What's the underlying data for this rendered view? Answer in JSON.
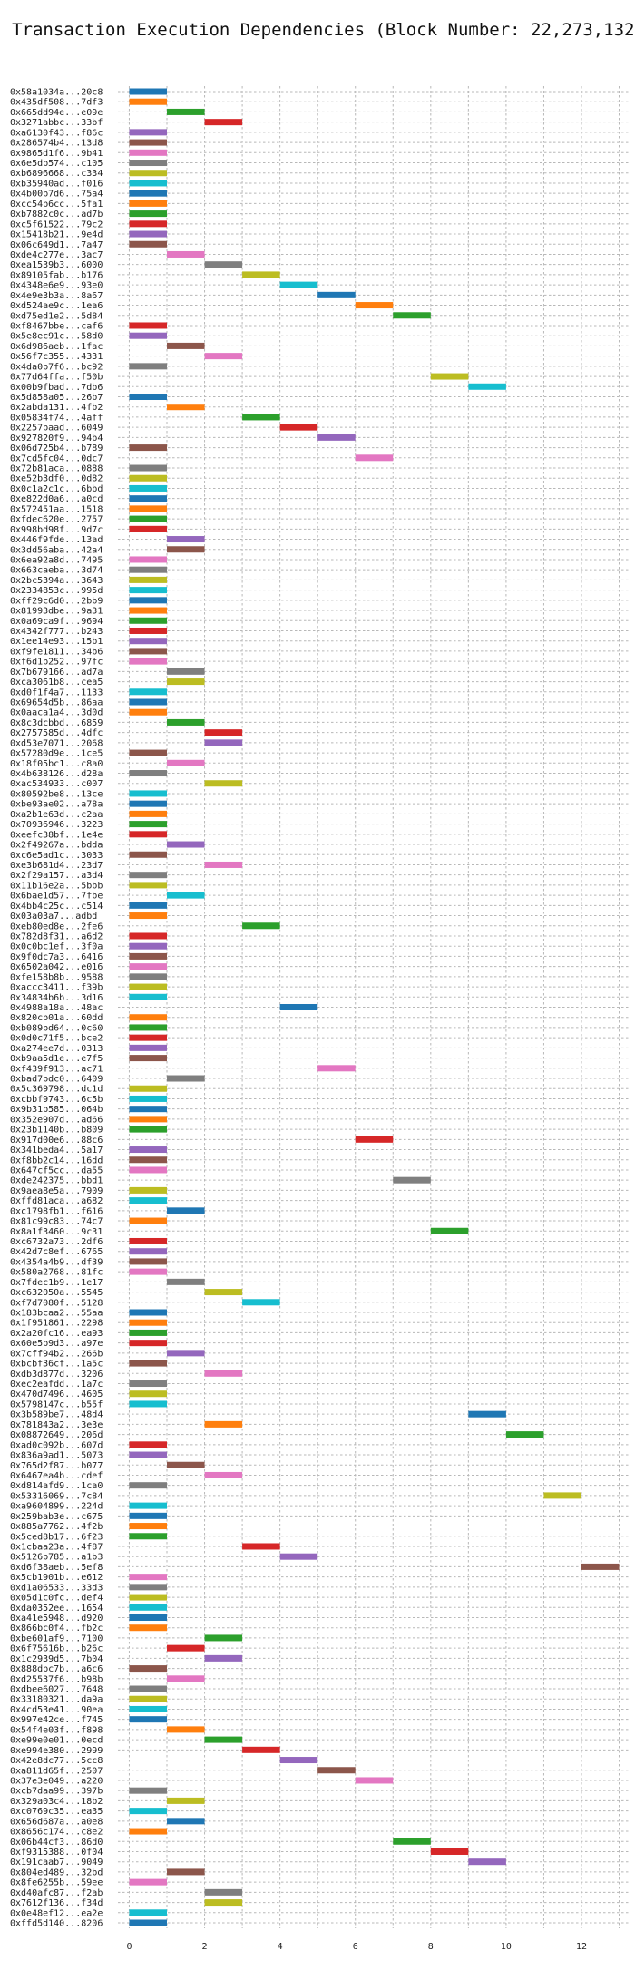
{
  "chart_data": {
    "type": "bar",
    "orientation": "horizontal",
    "title": "Transaction Execution Dependencies (Block Number: 22,273,132)",
    "xlabel": "",
    "ylabel": "",
    "xlim": [
      -0.3,
      13.3
    ],
    "xticks": [
      0,
      2,
      4,
      6,
      8,
      10,
      12
    ],
    "grid": "dotted vertical and horizontal",
    "legend": "none",
    "palette": [
      "#1f77b4",
      "#ff7f0e",
      "#2ca02c",
      "#d62728",
      "#9467bd",
      "#8c564b",
      "#e377c2",
      "#7f7f7f",
      "#bcbd22",
      "#17becf"
    ],
    "transactions": [
      {
        "hash": "0x58a1034a...20c8",
        "start": 0,
        "color": 0
      },
      {
        "hash": "0x435df508...7df3",
        "start": 0,
        "color": 1
      },
      {
        "hash": "0x665dd94e...e09e",
        "start": 1,
        "color": 2
      },
      {
        "hash": "0x3271abbc...33bf",
        "start": 2,
        "color": 3
      },
      {
        "hash": "0xa6130f43...f86c",
        "start": 0,
        "color": 4
      },
      {
        "hash": "0x286574b4...13d8",
        "start": 0,
        "color": 5
      },
      {
        "hash": "0x9865d1f6...9b41",
        "start": 0,
        "color": 6
      },
      {
        "hash": "0x6e5db574...c105",
        "start": 0,
        "color": 7
      },
      {
        "hash": "0xb6896668...c334",
        "start": 0,
        "color": 8
      },
      {
        "hash": "0xb35940ad...f016",
        "start": 0,
        "color": 9
      },
      {
        "hash": "0x4b00b7d6...75a4",
        "start": 0,
        "color": 0
      },
      {
        "hash": "0xcc54b6cc...5fa1",
        "start": 0,
        "color": 1
      },
      {
        "hash": "0xb7882c0c...ad7b",
        "start": 0,
        "color": 2
      },
      {
        "hash": "0xc5f61522...79c2",
        "start": 0,
        "color": 3
      },
      {
        "hash": "0x15418b21...9e4d",
        "start": 0,
        "color": 4
      },
      {
        "hash": "0x06c649d1...7a47",
        "start": 0,
        "color": 5
      },
      {
        "hash": "0xde4c277e...3ac7",
        "start": 1,
        "color": 6
      },
      {
        "hash": "0xea1539b3...6000",
        "start": 2,
        "color": 7
      },
      {
        "hash": "0x89105fab...b176",
        "start": 3,
        "color": 8
      },
      {
        "hash": "0x4348e6e9...93e0",
        "start": 4,
        "color": 9
      },
      {
        "hash": "0x4e9e3b3a...8a67",
        "start": 5,
        "color": 0
      },
      {
        "hash": "0xd524ae9c...1ea6",
        "start": 6,
        "color": 1
      },
      {
        "hash": "0xd75ed1e2...5d84",
        "start": 7,
        "color": 2
      },
      {
        "hash": "0xf8467bbe...caf6",
        "start": 0,
        "color": 3
      },
      {
        "hash": "0x5e8ec91c...58d0",
        "start": 0,
        "color": 4
      },
      {
        "hash": "0x6d986aeb...1fac",
        "start": 1,
        "color": 5
      },
      {
        "hash": "0x56f7c355...4331",
        "start": 2,
        "color": 6
      },
      {
        "hash": "0x4da0b7f6...bc92",
        "start": 0,
        "color": 7
      },
      {
        "hash": "0x77d64ffa...f50b",
        "start": 8,
        "color": 8
      },
      {
        "hash": "0x00b9fbad...7db6",
        "start": 9,
        "color": 9
      },
      {
        "hash": "0x5d858a05...26b7",
        "start": 0,
        "color": 0
      },
      {
        "hash": "0x2abda131...4fb2",
        "start": 1,
        "color": 1
      },
      {
        "hash": "0x05834f74...4aff",
        "start": 3,
        "color": 2
      },
      {
        "hash": "0x2257baad...6049",
        "start": 4,
        "color": 3
      },
      {
        "hash": "0x927820f9...94b4",
        "start": 5,
        "color": 4
      },
      {
        "hash": "0x06d725b4...b789",
        "start": 0,
        "color": 5
      },
      {
        "hash": "0x7cd5fc04...0dc7",
        "start": 6,
        "color": 6
      },
      {
        "hash": "0x72b81aca...0888",
        "start": 0,
        "color": 7
      },
      {
        "hash": "0xe52b3df0...0d82",
        "start": 0,
        "color": 8
      },
      {
        "hash": "0x0c1a2c1c...6bbd",
        "start": 0,
        "color": 9
      },
      {
        "hash": "0xe822d0a6...a0cd",
        "start": 0,
        "color": 0
      },
      {
        "hash": "0x572451aa...1518",
        "start": 0,
        "color": 1
      },
      {
        "hash": "0xfdec620e...2757",
        "start": 0,
        "color": 2
      },
      {
        "hash": "0x998bd98f...9d7c",
        "start": 0,
        "color": 3
      },
      {
        "hash": "0x446f9fde...13ad",
        "start": 1,
        "color": 4
      },
      {
        "hash": "0x3dd56aba...42a4",
        "start": 1,
        "color": 5
      },
      {
        "hash": "0x6ea92a8d...7495",
        "start": 0,
        "color": 6
      },
      {
        "hash": "0x663caeba...3d74",
        "start": 0,
        "color": 7
      },
      {
        "hash": "0x2bc5394a...3643",
        "start": 0,
        "color": 8
      },
      {
        "hash": "0x2334853c...995d",
        "start": 0,
        "color": 9
      },
      {
        "hash": "0xff29c6d0...2bb9",
        "start": 0,
        "color": 0
      },
      {
        "hash": "0x81993dbe...9a31",
        "start": 0,
        "color": 1
      },
      {
        "hash": "0x0a69ca9f...9694",
        "start": 0,
        "color": 2
      },
      {
        "hash": "0x4342f777...b243",
        "start": 0,
        "color": 3
      },
      {
        "hash": "0x1ee14e93...15b1",
        "start": 0,
        "color": 4
      },
      {
        "hash": "0xf9fe1811...34b6",
        "start": 0,
        "color": 5
      },
      {
        "hash": "0xf6d1b252...97fc",
        "start": 0,
        "color": 6
      },
      {
        "hash": "0x7b679166...ad7a",
        "start": 1,
        "color": 7
      },
      {
        "hash": "0xca3061b8...cea5",
        "start": 1,
        "color": 8
      },
      {
        "hash": "0xd0f1f4a7...1133",
        "start": 0,
        "color": 9
      },
      {
        "hash": "0x69654d5b...86aa",
        "start": 0,
        "color": 0
      },
      {
        "hash": "0x0aaca1a4...3d0d",
        "start": 0,
        "color": 1
      },
      {
        "hash": "0x8c3dcbbd...6859",
        "start": 1,
        "color": 2
      },
      {
        "hash": "0x2757585d...4dfc",
        "start": 2,
        "color": 3
      },
      {
        "hash": "0xd53e7071...2068",
        "start": 2,
        "color": 4
      },
      {
        "hash": "0x57280d9e...1ce5",
        "start": 0,
        "color": 5
      },
      {
        "hash": "0x18f05bc1...c8a0",
        "start": 1,
        "color": 6
      },
      {
        "hash": "0x4b638126...d28a",
        "start": 0,
        "color": 7
      },
      {
        "hash": "0xac534933...c007",
        "start": 2,
        "color": 8
      },
      {
        "hash": "0x80592be8...13ce",
        "start": 0,
        "color": 9
      },
      {
        "hash": "0xbe93ae02...a78a",
        "start": 0,
        "color": 0
      },
      {
        "hash": "0xa2b1e63d...c2aa",
        "start": 0,
        "color": 1
      },
      {
        "hash": "0x70936946...3223",
        "start": 0,
        "color": 2
      },
      {
        "hash": "0xeefc38bf...1e4e",
        "start": 0,
        "color": 3
      },
      {
        "hash": "0x2f49267a...bdda",
        "start": 1,
        "color": 4
      },
      {
        "hash": "0xc6e5ad1c...3033",
        "start": 0,
        "color": 5
      },
      {
        "hash": "0xe3b681d4...23d7",
        "start": 2,
        "color": 6
      },
      {
        "hash": "0x2f29a157...a3d4",
        "start": 0,
        "color": 7
      },
      {
        "hash": "0x11b16e2a...5bbb",
        "start": 0,
        "color": 8
      },
      {
        "hash": "0x6bae1d57...7fbe",
        "start": 1,
        "color": 9
      },
      {
        "hash": "0x4bb4c25c...c514",
        "start": 0,
        "color": 0
      },
      {
        "hash": "0x03a03a7...adbd",
        "start": 0,
        "color": 1
      },
      {
        "hash": "0xeb80ed8e...2fe6",
        "start": 3,
        "color": 2
      },
      {
        "hash": "0x782d8f31...a6d2",
        "start": 0,
        "color": 3
      },
      {
        "hash": "0x0c0bc1ef...3f0a",
        "start": 0,
        "color": 4
      },
      {
        "hash": "0x9f0dc7a3...6416",
        "start": 0,
        "color": 5
      },
      {
        "hash": "0x6502a042...e016",
        "start": 0,
        "color": 6
      },
      {
        "hash": "0xfe158b8b...9588",
        "start": 0,
        "color": 7
      },
      {
        "hash": "0xaccc3411...f39b",
        "start": 0,
        "color": 8
      },
      {
        "hash": "0x34834b6b...3d16",
        "start": 0,
        "color": 9
      },
      {
        "hash": "0x4988a18a...48ac",
        "start": 4,
        "color": 0
      },
      {
        "hash": "0x820cb01a...60dd",
        "start": 0,
        "color": 1
      },
      {
        "hash": "0xb089bd64...0c60",
        "start": 0,
        "color": 2
      },
      {
        "hash": "0x0d0c71f5...bce2",
        "start": 0,
        "color": 3
      },
      {
        "hash": "0xa274ee7d...0313",
        "start": 0,
        "color": 4
      },
      {
        "hash": "0xb9aa5d1e...e7f5",
        "start": 0,
        "color": 5
      },
      {
        "hash": "0xf439f913...ac71",
        "start": 5,
        "color": 6
      },
      {
        "hash": "0xbad7bdc0...6409",
        "start": 1,
        "color": 7
      },
      {
        "hash": "0x5c369798...dc1d",
        "start": 0,
        "color": 8
      },
      {
        "hash": "0xcbbf9743...6c5b",
        "start": 0,
        "color": 9
      },
      {
        "hash": "0x9b31b585...064b",
        "start": 0,
        "color": 0
      },
      {
        "hash": "0x352e907d...ad66",
        "start": 0,
        "color": 1
      },
      {
        "hash": "0x23b1140b...b809",
        "start": 0,
        "color": 2
      },
      {
        "hash": "0x917d00e6...88c6",
        "start": 6,
        "color": 3
      },
      {
        "hash": "0x341beda4...5a17",
        "start": 0,
        "color": 4
      },
      {
        "hash": "0xf8bb2c14...16dd",
        "start": 0,
        "color": 5
      },
      {
        "hash": "0x647cf5cc...da55",
        "start": 0,
        "color": 6
      },
      {
        "hash": "0xde242375...bbd1",
        "start": 7,
        "color": 7
      },
      {
        "hash": "0x9aea8e5a...7909",
        "start": 0,
        "color": 8
      },
      {
        "hash": "0xffd81aca...a682",
        "start": 0,
        "color": 9
      },
      {
        "hash": "0xc1798fb1...f616",
        "start": 1,
        "color": 0
      },
      {
        "hash": "0x81c99c83...74c7",
        "start": 0,
        "color": 1
      },
      {
        "hash": "0x8a1f3460...9c31",
        "start": 8,
        "color": 2
      },
      {
        "hash": "0xc6732a73...2df6",
        "start": 0,
        "color": 3
      },
      {
        "hash": "0x42d7c8ef...6765",
        "start": 0,
        "color": 4
      },
      {
        "hash": "0x4354a4b9...df39",
        "start": 0,
        "color": 5
      },
      {
        "hash": "0x580a2768...81fc",
        "start": 0,
        "color": 6
      },
      {
        "hash": "0x7fdec1b9...1e17",
        "start": 1,
        "color": 7
      },
      {
        "hash": "0xc632050a...5545",
        "start": 2,
        "color": 8
      },
      {
        "hash": "0xf7d7080f...5128",
        "start": 3,
        "color": 9
      },
      {
        "hash": "0x183bcaa2...55aa",
        "start": 0,
        "color": 0
      },
      {
        "hash": "0x1f951861...2298",
        "start": 0,
        "color": 1
      },
      {
        "hash": "0x2a20fc16...ea93",
        "start": 0,
        "color": 2
      },
      {
        "hash": "0x60e5b9d3...a97e",
        "start": 0,
        "color": 3
      },
      {
        "hash": "0x7cff94b2...266b",
        "start": 1,
        "color": 4
      },
      {
        "hash": "0xbcbf36cf...1a5c",
        "start": 0,
        "color": 5
      },
      {
        "hash": "0xdb3d877d...3206",
        "start": 2,
        "color": 6
      },
      {
        "hash": "0xec2eafdd...1a7c",
        "start": 0,
        "color": 7
      },
      {
        "hash": "0x470d7496...4605",
        "start": 0,
        "color": 8
      },
      {
        "hash": "0x5798147c...b55f",
        "start": 0,
        "color": 9
      },
      {
        "hash": "0x3b589be7...48d4",
        "start": 9,
        "color": 0
      },
      {
        "hash": "0x781843a2...3e3e",
        "start": 2,
        "color": 1
      },
      {
        "hash": "0x08872649...206d",
        "start": 10,
        "color": 2
      },
      {
        "hash": "0xad0c092b...607d",
        "start": 0,
        "color": 3
      },
      {
        "hash": "0x836a9ad1...5073",
        "start": 0,
        "color": 4
      },
      {
        "hash": "0x765d2f87...b077",
        "start": 1,
        "color": 5
      },
      {
        "hash": "0x6467ea4b...cdef",
        "start": 2,
        "color": 6
      },
      {
        "hash": "0xd814afd9...1ca0",
        "start": 0,
        "color": 7
      },
      {
        "hash": "0x53316069...7c84",
        "start": 11,
        "color": 8
      },
      {
        "hash": "0xa9604899...224d",
        "start": 0,
        "color": 9
      },
      {
        "hash": "0x259bab3e...c675",
        "start": 0,
        "color": 0
      },
      {
        "hash": "0x885a7762...4f2b",
        "start": 0,
        "color": 1
      },
      {
        "hash": "0x5ced8b17...6f23",
        "start": 0,
        "color": 2
      },
      {
        "hash": "0x1cbaa23a...4f87",
        "start": 3,
        "color": 3
      },
      {
        "hash": "0x5126b785...a1b3",
        "start": 4,
        "color": 4
      },
      {
        "hash": "0xd6f38aeb...5ef8",
        "start": 12,
        "color": 5
      },
      {
        "hash": "0x5cb1901b...e612",
        "start": 0,
        "color": 6
      },
      {
        "hash": "0xd1a06533...33d3",
        "start": 0,
        "color": 7
      },
      {
        "hash": "0x05d1c0fc...def4",
        "start": 0,
        "color": 8
      },
      {
        "hash": "0xda0352ee...1654",
        "start": 0,
        "color": 9
      },
      {
        "hash": "0xa41e5948...d920",
        "start": 0,
        "color": 0
      },
      {
        "hash": "0x866bc0f4...fb2c",
        "start": 0,
        "color": 1
      },
      {
        "hash": "0xbe601af9...7100",
        "start": 2,
        "color": 2
      },
      {
        "hash": "0x6f75616b...b26c",
        "start": 1,
        "color": 3
      },
      {
        "hash": "0x1c2939d5...7b04",
        "start": 2,
        "color": 4
      },
      {
        "hash": "0x888dbc7b...a6c6",
        "start": 0,
        "color": 5
      },
      {
        "hash": "0xd25537f6...b98b",
        "start": 1,
        "color": 6
      },
      {
        "hash": "0xdbee6027...7648",
        "start": 0,
        "color": 7
      },
      {
        "hash": "0x33180321...da9a",
        "start": 0,
        "color": 8
      },
      {
        "hash": "0x4cd53e41...90ea",
        "start": 0,
        "color": 9
      },
      {
        "hash": "0x997e42ce...f745",
        "start": 0,
        "color": 0
      },
      {
        "hash": "0x54f4e03f...f898",
        "start": 1,
        "color": 1
      },
      {
        "hash": "0xe99e0e01...0ecd",
        "start": 2,
        "color": 2
      },
      {
        "hash": "0xe994e380...2999",
        "start": 3,
        "color": 3
      },
      {
        "hash": "0x42e8dc77...5cc8",
        "start": 4,
        "color": 4
      },
      {
        "hash": "0xa811d65f...2507",
        "start": 5,
        "color": 5
      },
      {
        "hash": "0x37e3e049...a220",
        "start": 6,
        "color": 6
      },
      {
        "hash": "0xcb7daa99...397b",
        "start": 0,
        "color": 7
      },
      {
        "hash": "0x329a03c4...18b2",
        "start": 1,
        "color": 8
      },
      {
        "hash": "0xc0769c35...ea35",
        "start": 0,
        "color": 9
      },
      {
        "hash": "0x656d687a...a0e8",
        "start": 1,
        "color": 0
      },
      {
        "hash": "0x8656c174...c8e2",
        "start": 0,
        "color": 1
      },
      {
        "hash": "0x06b44cf3...86d0",
        "start": 7,
        "color": 2
      },
      {
        "hash": "0xf9315388...0f04",
        "start": 8,
        "color": 3
      },
      {
        "hash": "0x191caab7...9049",
        "start": 9,
        "color": 4
      },
      {
        "hash": "0x804ed489...32bd",
        "start": 1,
        "color": 5
      },
      {
        "hash": "0x8fe6255b...59ee",
        "start": 0,
        "color": 6
      },
      {
        "hash": "0xd40afc87...f2ab",
        "start": 2,
        "color": 7
      },
      {
        "hash": "0x7612f136...f34d",
        "start": 2,
        "color": 8
      },
      {
        "hash": "0x0e48ef12...ea2e",
        "start": 0,
        "color": 9
      },
      {
        "hash": "0xffd5d140...8206",
        "start": 0,
        "color": 0
      }
    ]
  }
}
